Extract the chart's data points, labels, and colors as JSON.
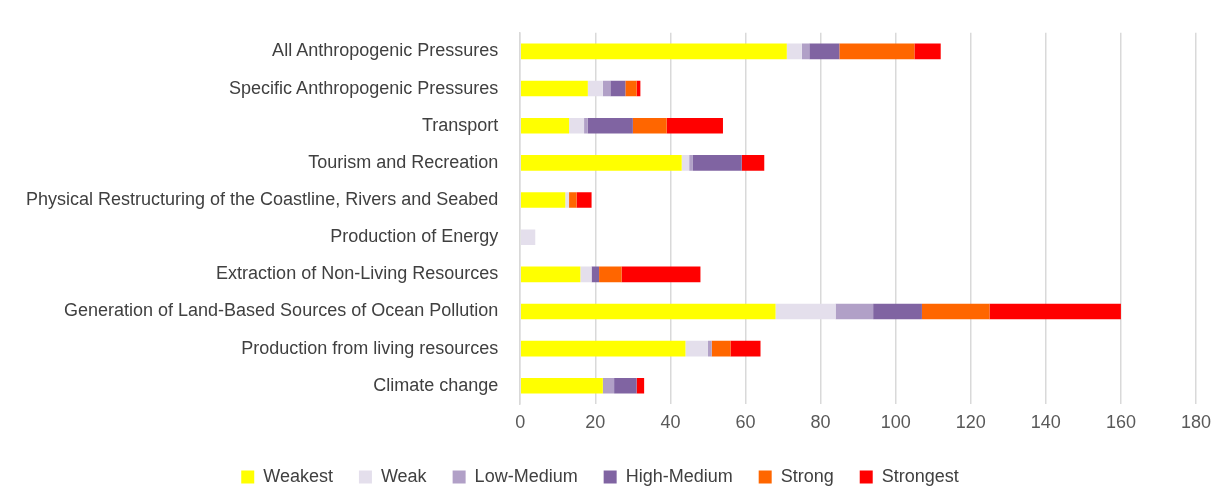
{
  "chart_data": {
    "type": "bar",
    "orientation": "horizontal",
    "stacked": true,
    "categories": [
      "All Anthropogenic Pressures",
      "Specific Anthropogenic Pressures",
      "Transport",
      "Tourism and Recreation",
      "Physical Restructuring of the Coastline, Rivers and Seabed",
      "Production of Energy",
      "Extraction of Non-Living Resources",
      "Generation of Land-Based Sources of Ocean Pollution",
      "Production from living resources",
      "Climate change"
    ],
    "series": [
      {
        "name": "Weakest",
        "color": "#ffff00",
        "values": [
          71,
          18,
          13,
          43,
          12,
          0,
          16,
          68,
          44,
          22
        ]
      },
      {
        "name": "Weak",
        "color": "#e4dfec",
        "values": [
          4,
          4,
          4,
          2,
          1,
          4,
          3,
          16,
          6,
          0
        ]
      },
      {
        "name": "Low-Medium",
        "color": "#b1a0c7",
        "values": [
          2,
          2,
          1,
          1,
          0,
          0,
          0,
          10,
          1,
          3
        ]
      },
      {
        "name": "High-Medium",
        "color": "#8064a2",
        "values": [
          8,
          4,
          12,
          13,
          0,
          0,
          2,
          13,
          0,
          6
        ]
      },
      {
        "name": "Strong",
        "color": "#ff6600",
        "values": [
          20,
          3,
          9,
          0,
          2,
          0,
          6,
          18,
          5,
          0
        ]
      },
      {
        "name": "Strongest",
        "color": "#ff0000",
        "values": [
          7,
          1,
          15,
          6,
          4,
          0,
          21,
          35,
          8,
          2
        ]
      }
    ],
    "xlim": [
      0,
      180
    ],
    "xticks": [
      0,
      20,
      40,
      60,
      80,
      100,
      120,
      140,
      160,
      180
    ],
    "grid": "x",
    "legend": "bottom"
  }
}
